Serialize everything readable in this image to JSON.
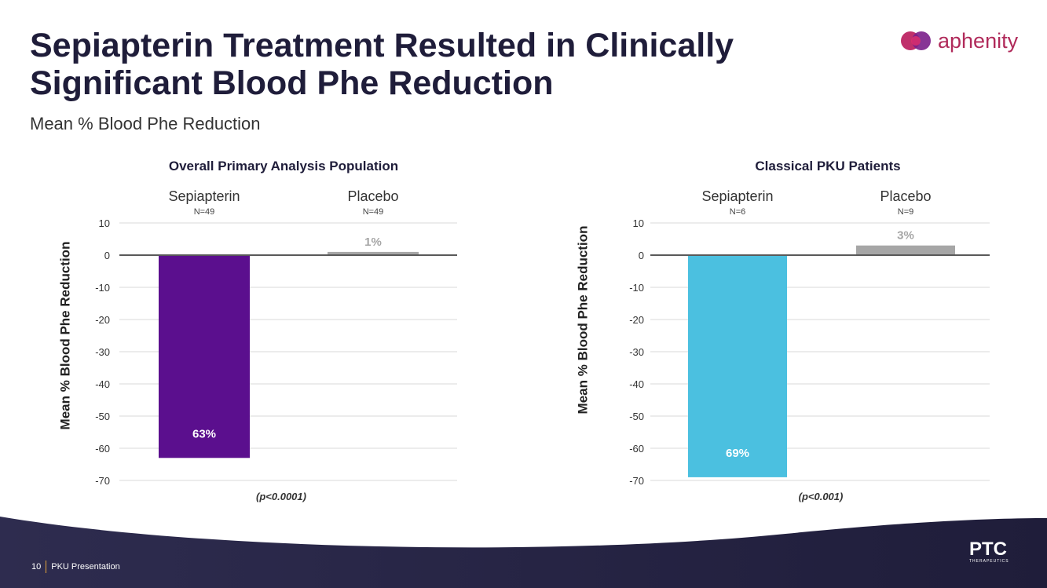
{
  "slide": {
    "title": "Sepiapterin Treatment Resulted in Clinically Significant Blood Phe Reduction",
    "subtitle": "Mean % Blood Phe Reduction",
    "logo_text": "aphenity",
    "footer_page": "10",
    "footer_label": "PKU Presentation",
    "footer_brand": "PTC",
    "footer_brand_sub": "THERAPEUTICS",
    "colors": {
      "title": "#1f1d3a",
      "footer_bg": "#2b2848",
      "logo_text": "#b02a5a"
    }
  },
  "chart_data": [
    {
      "type": "bar",
      "title": "Overall Primary Analysis Population",
      "categories": [
        "Sepiapterin",
        "Placebo"
      ],
      "n_labels": [
        "N=49",
        "N=49"
      ],
      "values": [
        -63,
        1
      ],
      "data_labels": [
        "63%",
        "1%"
      ],
      "colors": [
        "#5b0f8e",
        "#a6a6a6"
      ],
      "ylabel": "Mean % Blood Phe Reduction",
      "ylim": [
        -70,
        10
      ],
      "yticks": [
        10,
        0,
        -10,
        -20,
        -30,
        -40,
        -50,
        -60,
        -70
      ],
      "grid": true,
      "annotation": "(p<0.0001)"
    },
    {
      "type": "bar",
      "title": "Classical PKU Patients",
      "categories": [
        "Sepiapterin",
        "Placebo"
      ],
      "n_labels": [
        "N=6",
        "N=9"
      ],
      "values": [
        -69,
        3
      ],
      "data_labels": [
        "69%",
        "3%"
      ],
      "colors": [
        "#4bc0e0",
        "#a6a6a6"
      ],
      "ylabel": "Mean % Blood Phe Reduction",
      "ylim": [
        -70,
        10
      ],
      "yticks": [
        10,
        0,
        -10,
        -20,
        -30,
        -40,
        -50,
        -60,
        -70
      ],
      "grid": true,
      "annotation": "(p<0.001)"
    }
  ]
}
